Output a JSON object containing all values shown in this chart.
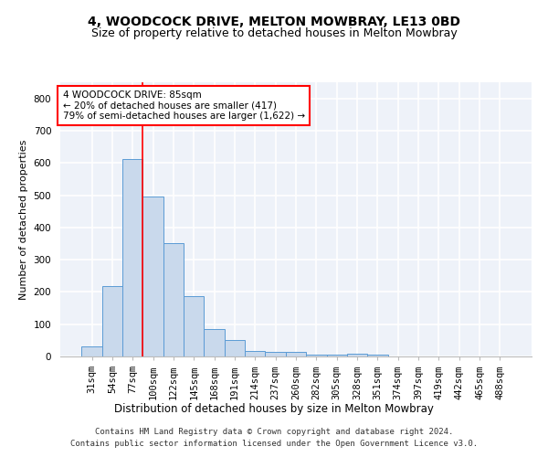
{
  "title": "4, WOODCOCK DRIVE, MELTON MOWBRAY, LE13 0BD",
  "subtitle": "Size of property relative to detached houses in Melton Mowbray",
  "xlabel": "Distribution of detached houses by size in Melton Mowbray",
  "ylabel": "Number of detached properties",
  "categories": [
    "31sqm",
    "54sqm",
    "77sqm",
    "100sqm",
    "122sqm",
    "145sqm",
    "168sqm",
    "191sqm",
    "214sqm",
    "237sqm",
    "260sqm",
    "282sqm",
    "305sqm",
    "328sqm",
    "351sqm",
    "374sqm",
    "397sqm",
    "419sqm",
    "442sqm",
    "465sqm",
    "488sqm"
  ],
  "values": [
    30,
    218,
    612,
    495,
    352,
    188,
    85,
    50,
    18,
    13,
    13,
    7,
    5,
    8,
    7,
    0,
    0,
    0,
    0,
    0,
    0
  ],
  "bar_color": "#c9d9ec",
  "bar_edge_color": "#5b9bd5",
  "property_line_x": 2.5,
  "annotation_text": "4 WOODCOCK DRIVE: 85sqm\n← 20% of detached houses are smaller (417)\n79% of semi-detached houses are larger (1,622) →",
  "annotation_box_color": "white",
  "annotation_box_edge_color": "red",
  "line_color": "red",
  "footer_line1": "Contains HM Land Registry data © Crown copyright and database right 2024.",
  "footer_line2": "Contains public sector information licensed under the Open Government Licence v3.0.",
  "ylim": [
    0,
    850
  ],
  "title_fontsize": 10,
  "subtitle_fontsize": 9,
  "xlabel_fontsize": 8.5,
  "ylabel_fontsize": 8,
  "tick_fontsize": 7.5,
  "annotation_fontsize": 7.5,
  "footer_fontsize": 6.5,
  "background_color": "#eef2f9",
  "grid_color": "white"
}
